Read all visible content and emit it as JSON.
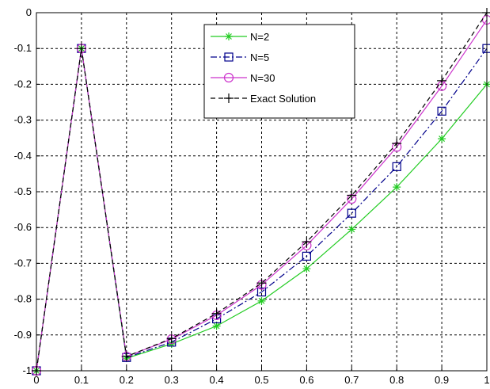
{
  "chart_data": {
    "type": "line",
    "title": "",
    "xlabel": "",
    "ylabel": "",
    "xlim": [
      0,
      1
    ],
    "ylim": [
      -1,
      0
    ],
    "xticks": [
      "0",
      "0.1",
      "0.2",
      "0.3",
      "0.4",
      "0.5",
      "0.6",
      "0.7",
      "0.8",
      "0.9",
      "1"
    ],
    "yticks": [
      "0",
      "-0.1",
      "-0.2",
      "-0.3",
      "-0.4",
      "-0.5",
      "-0.6",
      "-0.7",
      "-0.8",
      "-0.9",
      "-1"
    ],
    "grid": true,
    "legend_position": "top-center",
    "series": [
      {
        "name": "N=2",
        "color": "#22cc22",
        "line_style": "solid",
        "marker": "asterisk",
        "x": [
          0,
          0.1,
          0.2,
          0.3,
          0.4,
          0.5,
          0.6,
          0.7,
          0.8,
          0.9,
          1.0
        ],
        "y": [
          -1.0,
          -0.1,
          -0.965,
          -0.925,
          -0.875,
          -0.805,
          -0.715,
          -0.605,
          -0.487,
          -0.352,
          -0.2
        ]
      },
      {
        "name": "N=5",
        "color": "#00008b",
        "line_style": "dashdot",
        "marker": "square",
        "x": [
          0,
          0.1,
          0.2,
          0.3,
          0.4,
          0.5,
          0.6,
          0.7,
          0.8,
          0.9,
          1.0
        ],
        "y": [
          -1.0,
          -0.1,
          -0.963,
          -0.92,
          -0.855,
          -0.78,
          -0.68,
          -0.56,
          -0.43,
          -0.275,
          -0.1
        ]
      },
      {
        "name": "N=30",
        "color": "#cc33cc",
        "line_style": "solid",
        "marker": "circle",
        "x": [
          0,
          0.1,
          0.2,
          0.3,
          0.4,
          0.5,
          0.6,
          0.7,
          0.8,
          0.9,
          1.0
        ],
        "y": [
          -1.0,
          -0.1,
          -0.96,
          -0.912,
          -0.845,
          -0.76,
          -0.65,
          -0.52,
          -0.375,
          -0.205,
          -0.02
        ]
      },
      {
        "name": "Exact Solution",
        "color": "#000000",
        "line_style": "dashed",
        "marker": "plus",
        "x": [
          0,
          0.1,
          0.2,
          0.3,
          0.4,
          0.5,
          0.6,
          0.7,
          0.8,
          0.9,
          1.0
        ],
        "y": [
          -1.0,
          -0.1,
          -0.96,
          -0.91,
          -0.84,
          -0.755,
          -0.64,
          -0.51,
          -0.365,
          -0.19,
          0.0
        ]
      }
    ]
  }
}
